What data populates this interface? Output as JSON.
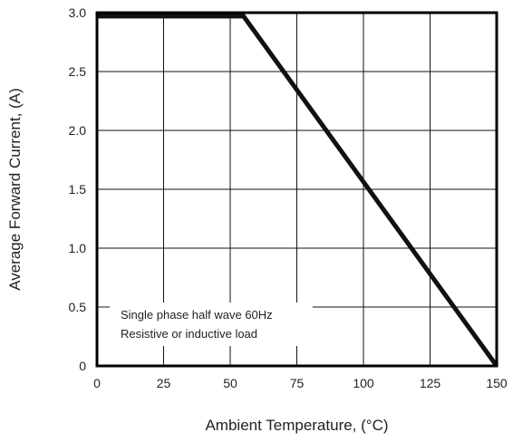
{
  "chart_data": {
    "type": "line",
    "xlabel": "Ambient Temperature, (°C)",
    "ylabel": "Average Forward Current, (A)",
    "xlim": [
      0,
      150
    ],
    "ylim": [
      0,
      3.0
    ],
    "xticks": [
      "0",
      "25",
      "50",
      "75",
      "100",
      "125",
      "150"
    ],
    "yticks": [
      "0",
      "0.5",
      "1.0",
      "1.5",
      "2.0",
      "2.5",
      "3.0"
    ],
    "grid": true,
    "series": [
      {
        "x": [
          0,
          55,
          150
        ],
        "y": [
          2.97,
          2.97,
          0
        ]
      }
    ],
    "annotation": [
      "Single phase half wave 60Hz",
      "Resistive or inductive load"
    ],
    "colors": {
      "line": "#111111",
      "grid": "#111111",
      "frame": "#000000"
    }
  }
}
